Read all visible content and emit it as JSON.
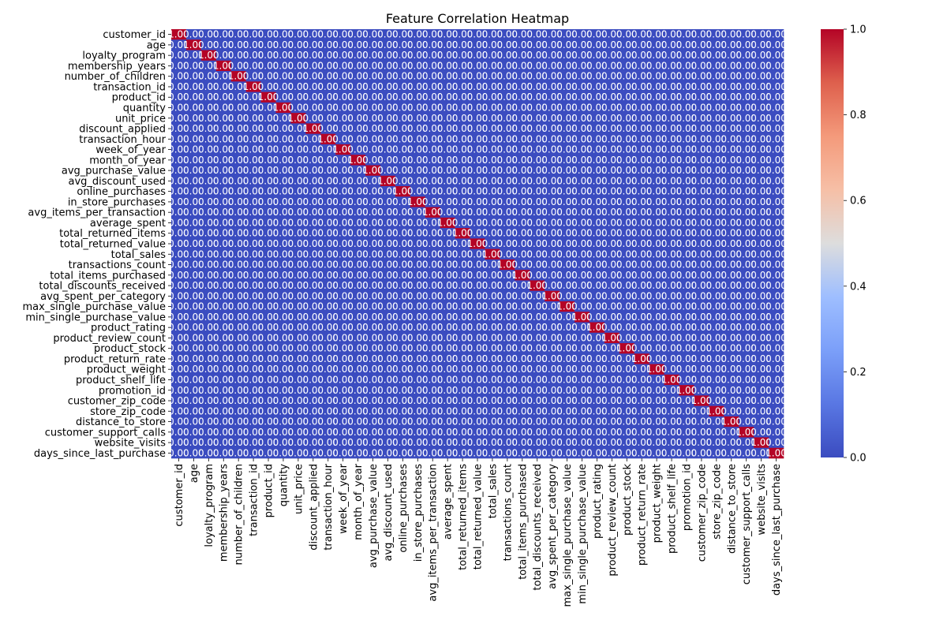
{
  "chart_data": {
    "type": "heatmap",
    "title": "Feature Correlation Heatmap",
    "features": [
      "customer_id",
      "age",
      "loyalty_program",
      "membership_years",
      "number_of_children",
      "transaction_id",
      "product_id",
      "quantity",
      "unit_price",
      "discount_applied",
      "transaction_hour",
      "week_of_year",
      "month_of_year",
      "avg_purchase_value",
      "avg_discount_used",
      "online_purchases",
      "in_store_purchases",
      "avg_items_per_transaction",
      "average_spent",
      "total_returned_items",
      "total_returned_value",
      "total_sales",
      "transactions_count",
      "total_items_purchased",
      "total_discounts_received",
      "avg_spent_per_category",
      "max_single_purchase_value",
      "min_single_purchase_value",
      "product_rating",
      "product_review_count",
      "product_stock",
      "product_return_rate",
      "product_weight",
      "product_shelf_life",
      "promotion_id",
      "customer_zip_code",
      "store_zip_code",
      "distance_to_store",
      "customer_support_calls",
      "website_visits",
      "days_since_last_purchase"
    ],
    "diagonal_value": 1.0,
    "off_diagonal_value": 0.0,
    "diagonal_label": "1.00",
    "off_diagonal_label": "0.00",
    "colorbar": {
      "ticks": [
        "0.0",
        "0.2",
        "0.4",
        "0.6",
        "0.8",
        "1.0"
      ],
      "tick_values": [
        0.0,
        0.2,
        0.4,
        0.6,
        0.8,
        1.0
      ],
      "range": [
        0.0,
        1.0
      ],
      "colormap": "coolwarm",
      "low_color": "#3b4cc0",
      "mid_color": "#dddddd",
      "high_color": "#b40426"
    }
  }
}
